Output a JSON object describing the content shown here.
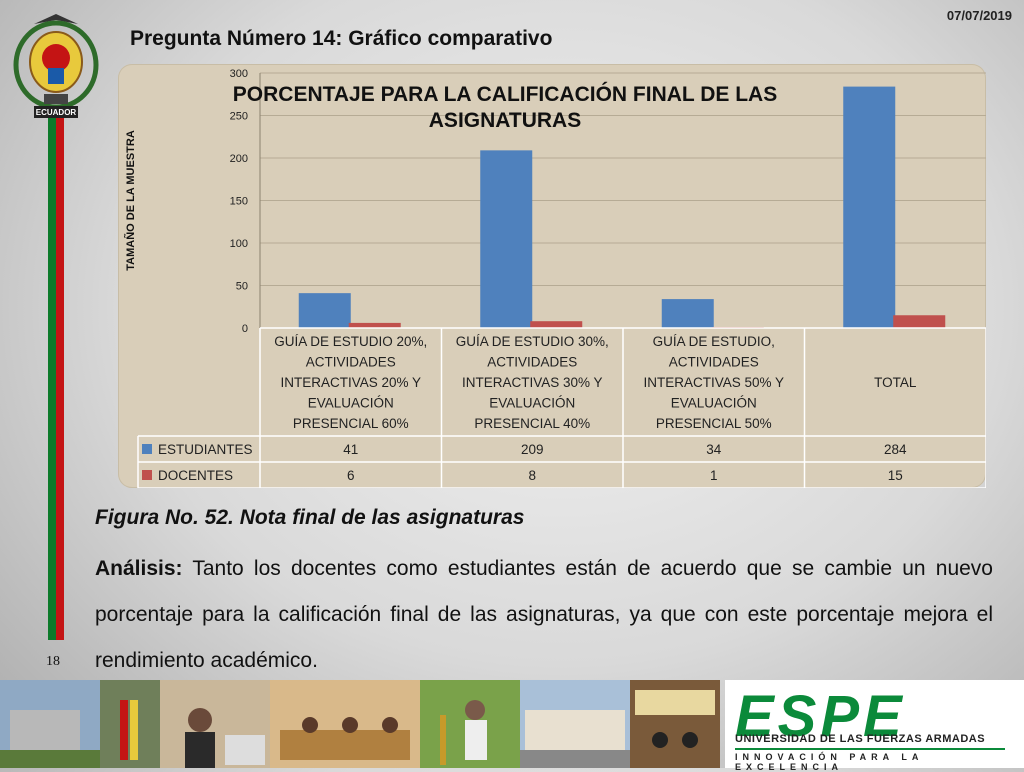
{
  "header": {
    "date": "07/07/2019",
    "slide_title": "Pregunta Número 14: Gráfico comparativo"
  },
  "crest_text": "ECUADOR",
  "page_number": "18",
  "chart_data": {
    "type": "bar",
    "title": "PORCENTAJE PARA LA CALIFICACIÓN FINAL DE LAS ASIGNATURAS",
    "title_lines": [
      "PORCENTAJE PARA LA CALIFICACIÓN FINAL DE LAS",
      "ASIGNATURAS"
    ],
    "ylabel": "TAMAÑO DE LA MUESTRA",
    "ylim": [
      0,
      300
    ],
    "yticks": [
      0,
      50,
      100,
      150,
      200,
      250,
      300
    ],
    "categories": [
      "GUÍA DE ESTUDIO 20%, ACTIVIDADES INTERACTIVAS 20% Y EVALUACIÓN PRESENCIAL 60%",
      "GUÍA DE ESTUDIO 30%, ACTIVIDADES INTERACTIVAS 30% Y EVALUACIÓN PRESENCIAL 40%",
      "GUÍA DE ESTUDIO, ACTIVIDADES INTERACTIVAS 50% Y EVALUACIÓN PRESENCIAL 50%",
      "TOTAL"
    ],
    "category_lines": [
      [
        "GUÍA DE ESTUDIO 20%,",
        "ACTIVIDADES",
        "INTERACTIVAS 20% Y",
        "EVALUACIÓN",
        "PRESENCIAL 60%"
      ],
      [
        "GUÍA DE ESTUDIO 30%,",
        "ACTIVIDADES",
        "INTERACTIVAS 30% Y",
        "EVALUACIÓN",
        "PRESENCIAL 40%"
      ],
      [
        "GUÍA DE ESTUDIO,",
        "ACTIVIDADES",
        "INTERACTIVAS 50% Y",
        "EVALUACIÓN",
        "PRESENCIAL 50%"
      ],
      [
        "TOTAL"
      ]
    ],
    "series": [
      {
        "name": "ESTUDIANTES",
        "values": [
          41,
          209,
          34,
          284
        ],
        "color": "#4f81bd"
      },
      {
        "name": "DOCENTES",
        "values": [
          6,
          8,
          1,
          15
        ],
        "color": "#c0504d"
      }
    ],
    "grid": true,
    "legend": "data-table"
  },
  "caption": "Figura No. 52. Nota final de las asignaturas",
  "analysis": {
    "label": "Análisis:",
    "text": "Tanto los docentes como estudiantes están de acuerdo que se cambie un nuevo porcentaje para la calificación final de las asignaturas, ya que con este porcentaje mejora el rendimiento académico."
  },
  "footer": {
    "logo_text": "ESPE",
    "logo_subtitle": "UNIVERSIDAD DE LAS FUERZAS ARMADAS",
    "logo_tagline": "INNOVACIÓN PARA LA EXCELENCIA",
    "colors": {
      "green": "#0b8a3a"
    }
  }
}
